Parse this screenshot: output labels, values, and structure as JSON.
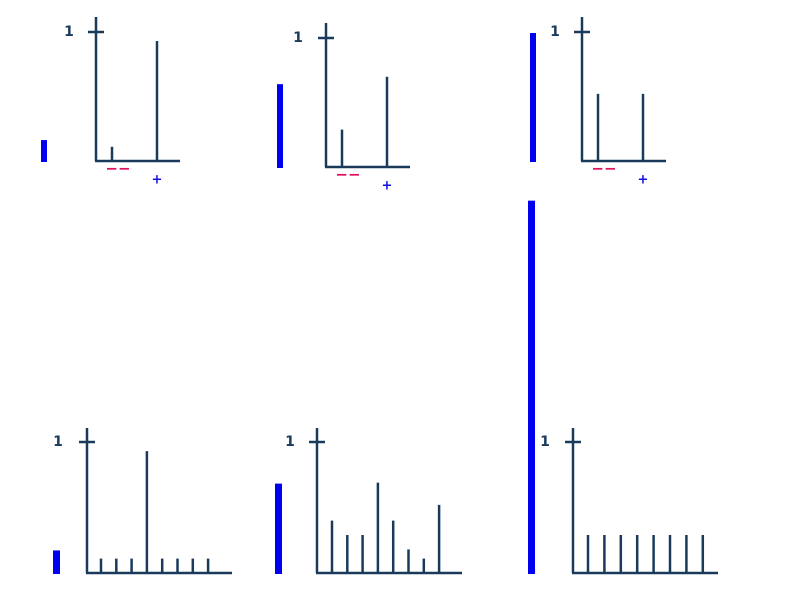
{
  "panels": [
    {
      "yticks": [
        1
      ],
      "values": [
        0.11,
        0.93
      ],
      "labels": [
        "−−",
        "+"
      ],
      "bar": 0.17
    },
    {
      "yticks": [
        1
      ],
      "values": [
        0.29,
        0.7
      ],
      "labels": [
        "−−",
        "+"
      ],
      "bar": 0.65
    },
    {
      "yticks": [
        1
      ],
      "values": [
        0.52,
        0.52
      ],
      "labels": [
        "−−",
        "+"
      ],
      "bar": 1.0
    },
    {
      "yticks": [
        1
      ],
      "values": [
        0.11,
        0.11,
        0.11,
        0.93,
        0.11,
        0.11,
        0.11,
        0.11
      ],
      "bar": 0.18
    },
    {
      "yticks": [
        1
      ],
      "values": [
        0.4,
        0.29,
        0.29,
        0.69,
        0.4,
        0.18,
        0.11,
        0.52
      ],
      "bar": 0.69
    },
    {
      "yticks": [
        1
      ],
      "values": [
        0.29,
        0.29,
        0.29,
        0.29,
        0.29,
        0.29,
        0.29,
        0.29
      ],
      "bar": 2.85
    }
  ]
}
